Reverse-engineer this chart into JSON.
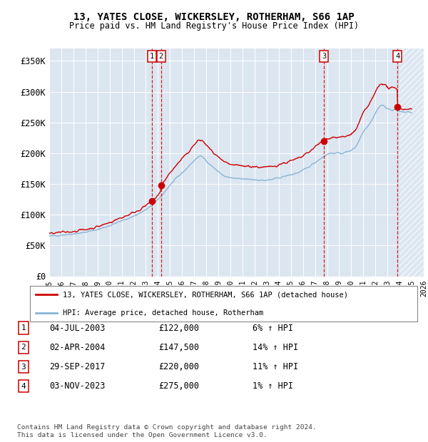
{
  "title": "13, YATES CLOSE, WICKERSLEY, ROTHERHAM, S66 1AP",
  "subtitle": "Price paid vs. HM Land Registry's House Price Index (HPI)",
  "ylim": [
    0,
    370000
  ],
  "yticks": [
    0,
    50000,
    100000,
    150000,
    200000,
    250000,
    300000,
    350000
  ],
  "ytick_labels": [
    "£0",
    "£50K",
    "£100K",
    "£150K",
    "£200K",
    "£250K",
    "£300K",
    "£350K"
  ],
  "background_color": "#ffffff",
  "plot_bg_color": "#dce6f1",
  "grid_color": "#ffffff",
  "hpi_line_color": "#8ab4d4",
  "price_line_color": "#cc0000",
  "sales": [
    {
      "date_num": 2003.5,
      "price": 122000,
      "label": "1",
      "date_str": "04-JUL-2003",
      "pct": "6%"
    },
    {
      "date_num": 2004.25,
      "price": 147500,
      "label": "2",
      "date_str": "02-APR-2004",
      "pct": "14%"
    },
    {
      "date_num": 2017.75,
      "price": 220000,
      "label": "3",
      "date_str": "29-SEP-2017",
      "pct": "11%"
    },
    {
      "date_num": 2023.83,
      "price": 275000,
      "label": "4",
      "date_str": "03-NOV-2023",
      "pct": "1%"
    }
  ],
  "legend_line1": "13, YATES CLOSE, WICKERSLEY, ROTHERHAM, S66 1AP (detached house)",
  "legend_line2": "HPI: Average price, detached house, Rotherham",
  "footer1": "Contains HM Land Registry data © Crown copyright and database right 2024.",
  "footer2": "This data is licensed under the Open Government Licence v3.0.",
  "xmin": 1995,
  "xmax": 2026,
  "future_shade_start": 2024.0
}
